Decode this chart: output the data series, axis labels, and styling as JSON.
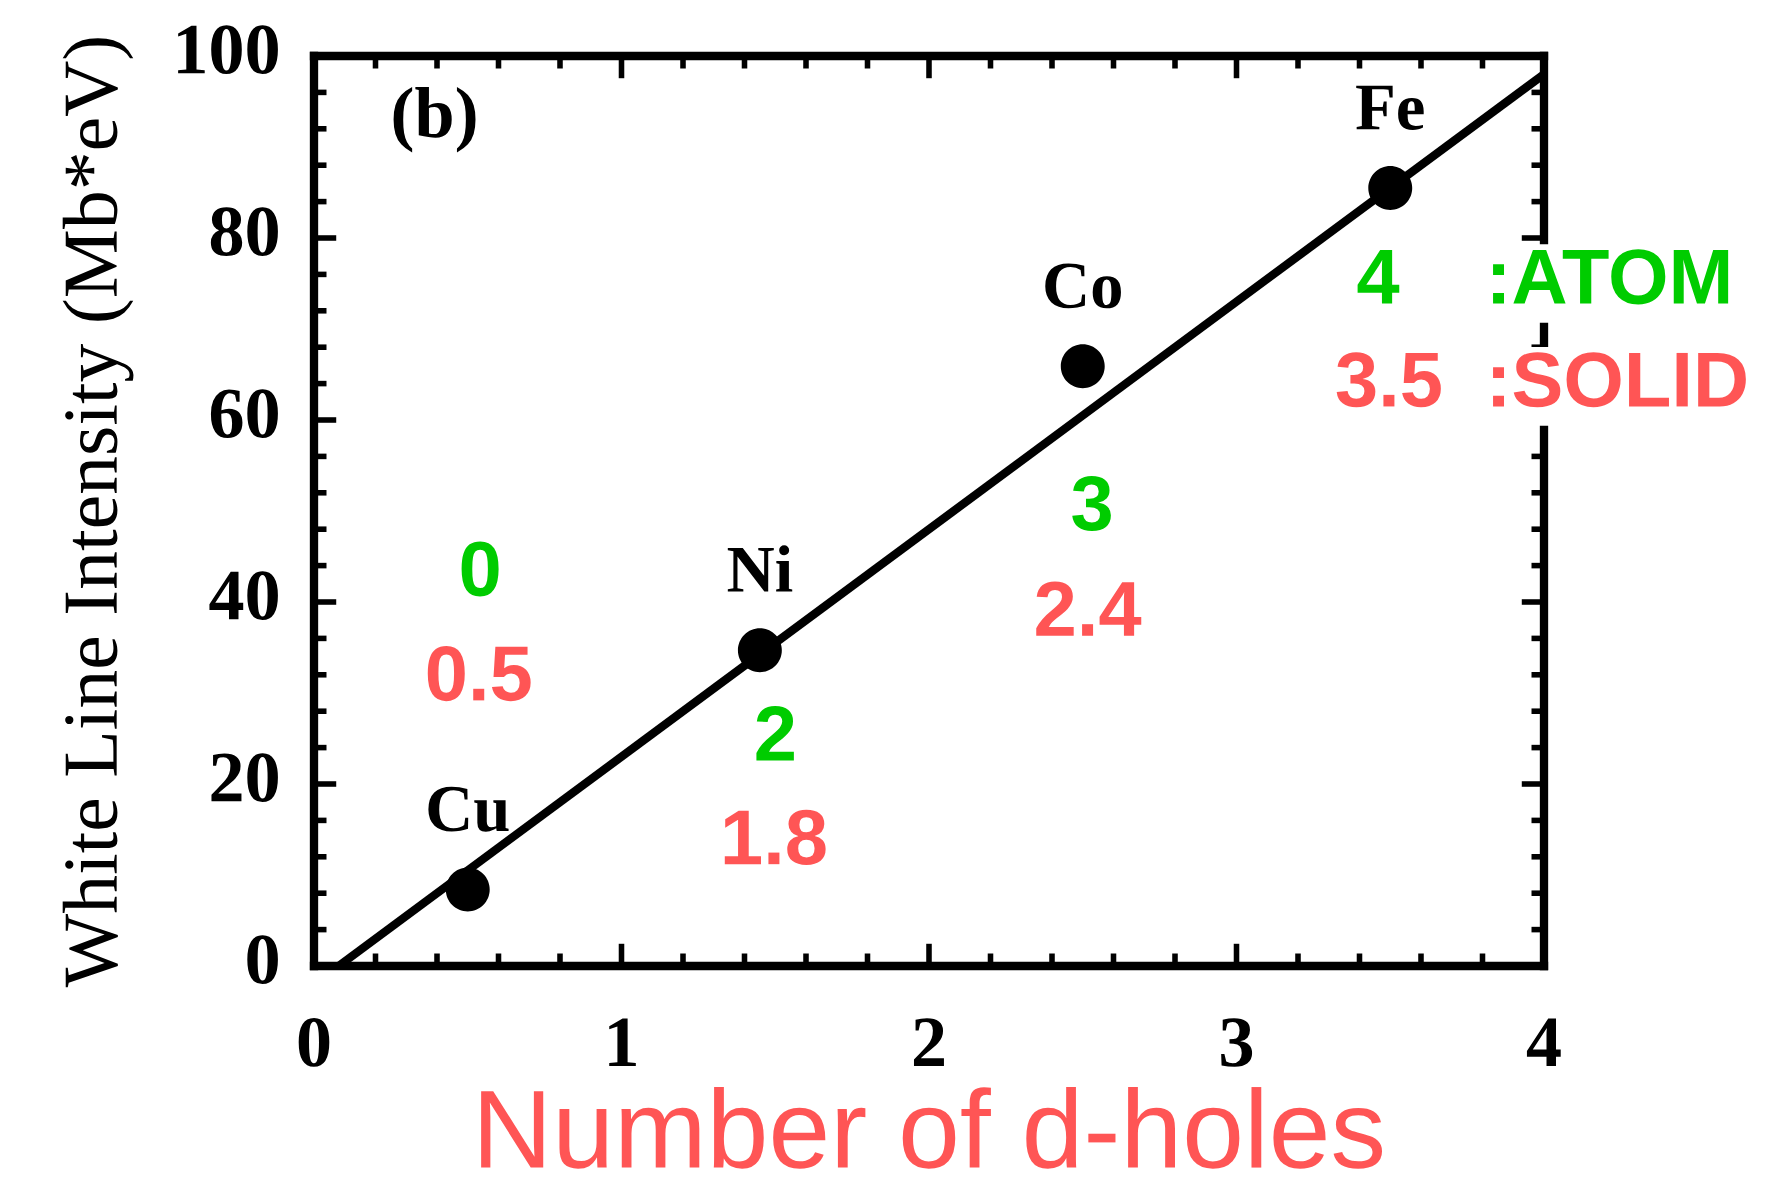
{
  "chart_data": {
    "type": "scatter",
    "xlabel": "Number of d-holes",
    "ylabel": "White Line Intensity (Mb*eV)",
    "xlim": [
      0,
      4
    ],
    "ylim": [
      0,
      100
    ],
    "xticks": [
      0,
      {
        "value": 0.2,
        "label": null
      },
      {
        "value": 0.4,
        "label": null
      },
      {
        "value": 0.6,
        "label": null
      },
      {
        "value": 0.8,
        "label": null
      },
      1,
      {
        "value": 1.2,
        "label": null
      },
      {
        "value": 1.4,
        "label": null
      },
      {
        "value": 1.6,
        "label": null
      },
      {
        "value": 1.8,
        "label": null
      },
      2,
      {
        "value": 2.2,
        "label": null
      },
      {
        "value": 2.4,
        "label": null
      },
      {
        "value": 2.6,
        "label": null
      },
      {
        "value": 2.8,
        "label": null
      },
      3,
      {
        "value": 3.2,
        "label": null
      },
      {
        "value": 3.4,
        "label": null
      },
      {
        "value": 3.6,
        "label": null
      },
      {
        "value": 3.8,
        "label": null
      },
      4
    ],
    "yticks": [
      0,
      {
        "value": 4,
        "label": null
      },
      {
        "value": 8,
        "label": null
      },
      {
        "value": 12,
        "label": null
      },
      {
        "value": 16,
        "label": null
      },
      20,
      {
        "value": 24,
        "label": null
      },
      {
        "value": 28,
        "label": null
      },
      {
        "value": 32,
        "label": null
      },
      {
        "value": 36,
        "label": null
      },
      40,
      {
        "value": 44,
        "label": null
      },
      {
        "value": 48,
        "label": null
      },
      {
        "value": 52,
        "label": null
      },
      {
        "value": 56,
        "label": null
      },
      60,
      {
        "value": 64,
        "label": null
      },
      {
        "value": 68,
        "label": null
      },
      {
        "value": 72,
        "label": null
      },
      {
        "value": 76,
        "label": null
      },
      80,
      {
        "value": 84,
        "label": null
      },
      {
        "value": 88,
        "label": null
      },
      {
        "value": 92,
        "label": null
      },
      {
        "value": 96,
        "label": null
      },
      100
    ],
    "series": [
      {
        "color": "#000000",
        "marker": "circle",
        "x": [
          0.5,
          1.45,
          2.5,
          3.5
        ],
        "values": [
          8.4,
          34.7,
          65.9,
          85.5
        ]
      },
      {
        "type": "line",
        "color": "#000000",
        "x": [
          0.08,
          4
        ],
        "values": [
          0,
          98
        ]
      }
    ],
    "annotations": [
      "(b)",
      {
        "text": "Cu",
        "x": 0.5,
        "y": 8.4
      },
      {
        "text": "Ni",
        "x": 1.45,
        "y": 34.7
      },
      {
        "text": "Co",
        "x": 2.5,
        "y": 65.9
      },
      {
        "text": "Fe",
        "x": 3.5,
        "y": 85.5
      },
      "0",
      "0.5",
      "2",
      "1.8",
      "3",
      "2.4",
      "4",
      ":ATOM",
      "3.5",
      ":SOLID"
    ]
  }
}
